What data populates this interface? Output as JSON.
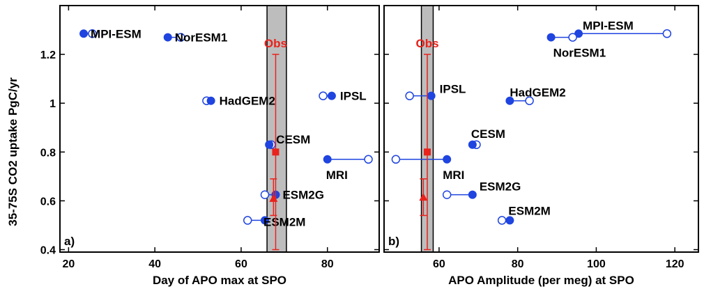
{
  "figure": {
    "ylabel": "35-75S CO2 uptake PgC/yr"
  },
  "chart_data": [
    {
      "type": "scatter",
      "panel_label": "a)",
      "xlabel": "Day of APO max at SPO",
      "xlim": [
        18,
        92
      ],
      "ylim": [
        0.39,
        1.4
      ],
      "xticks": [
        20,
        40,
        60,
        80
      ],
      "yticks": [
        0.4,
        0.6,
        0.8,
        1,
        1.2
      ],
      "ytick_labels": [
        "0.4",
        "0.6",
        "0.8",
        "1",
        "1.2"
      ],
      "band": {
        "x0": 66,
        "x1": 70.5,
        "color": "#bdbdbd"
      },
      "models": [
        {
          "name": "MPI-ESM",
          "filled": [
            23.5,
            1.285
          ],
          "open": [
            25.5,
            1.285
          ]
        },
        {
          "name": "NorESM1",
          "filled": [
            43,
            1.27
          ],
          "open": [
            46,
            1.27
          ]
        },
        {
          "name": "HadGEM2",
          "filled": [
            53,
            1.01
          ],
          "open": [
            52,
            1.01
          ]
        },
        {
          "name": "IPSL",
          "filled": [
            81,
            1.03
          ],
          "open": [
            79,
            1.03
          ]
        },
        {
          "name": "CESM",
          "filled": [
            66.5,
            0.83
          ],
          "open": [
            67,
            0.83
          ]
        },
        {
          "name": "MRI",
          "filled": [
            80,
            0.77
          ],
          "open": [
            89.5,
            0.77
          ]
        },
        {
          "name": "ESM2G",
          "filled": [
            68,
            0.625
          ],
          "open": [
            65.5,
            0.625
          ]
        },
        {
          "name": "ESM2M",
          "filled": [
            65.5,
            0.52
          ],
          "open": [
            61.5,
            0.52
          ]
        }
      ],
      "obs": {
        "label": "Obs",
        "square": {
          "x": 68,
          "y": 0.8,
          "ymin": 0.4,
          "ymax": 1.2
        },
        "triangle": {
          "x": 67.5,
          "y": 0.61,
          "ymin": 0.54,
          "ymax": 0.69
        }
      }
    },
    {
      "type": "scatter",
      "panel_label": "b)",
      "xlabel": "APO Amplitude (per meg) at SPO",
      "xlim": [
        46,
        126
      ],
      "ylim": [
        0.39,
        1.4
      ],
      "xticks": [
        60,
        80,
        100,
        120
      ],
      "yticks": [
        0.4,
        0.6,
        0.8,
        1,
        1.2
      ],
      "ytick_labels": [
        "",
        "",
        "",
        "",
        ""
      ],
      "band": {
        "x0": 55.5,
        "x1": 58.5,
        "color": "#bdbdbd"
      },
      "models": [
        {
          "name": "MPI-ESM",
          "filled": [
            95.5,
            1.285
          ],
          "open": [
            118,
            1.285
          ]
        },
        {
          "name": "NorESM1",
          "filled": [
            88.5,
            1.27
          ],
          "open": [
            94,
            1.27
          ]
        },
        {
          "name": "IPSL",
          "filled": [
            58,
            1.03
          ],
          "open": [
            52.5,
            1.03
          ]
        },
        {
          "name": "HadGEM2",
          "filled": [
            78,
            1.01
          ],
          "open": [
            83,
            1.01
          ]
        },
        {
          "name": "CESM",
          "filled": [
            68.5,
            0.83
          ],
          "open": [
            69.5,
            0.83
          ]
        },
        {
          "name": "MRI",
          "filled": [
            62,
            0.77
          ],
          "open": [
            49,
            0.77
          ]
        },
        {
          "name": "ESM2G",
          "filled": [
            68.5,
            0.625
          ],
          "open": [
            62,
            0.625
          ]
        },
        {
          "name": "ESM2M",
          "filled": [
            78,
            0.52
          ],
          "open": [
            76,
            0.52
          ]
        }
      ],
      "obs": {
        "label": "Obs",
        "square": {
          "x": 57,
          "y": 0.8,
          "ymin": 0.4,
          "ymax": 1.2
        },
        "triangle": {
          "x": 56,
          "y": 0.615,
          "ymin": 0.54,
          "ymax": 0.69
        }
      }
    }
  ],
  "colors": {
    "model": "#1f44e0",
    "obs": "#e8221c",
    "axis": "#000000"
  }
}
